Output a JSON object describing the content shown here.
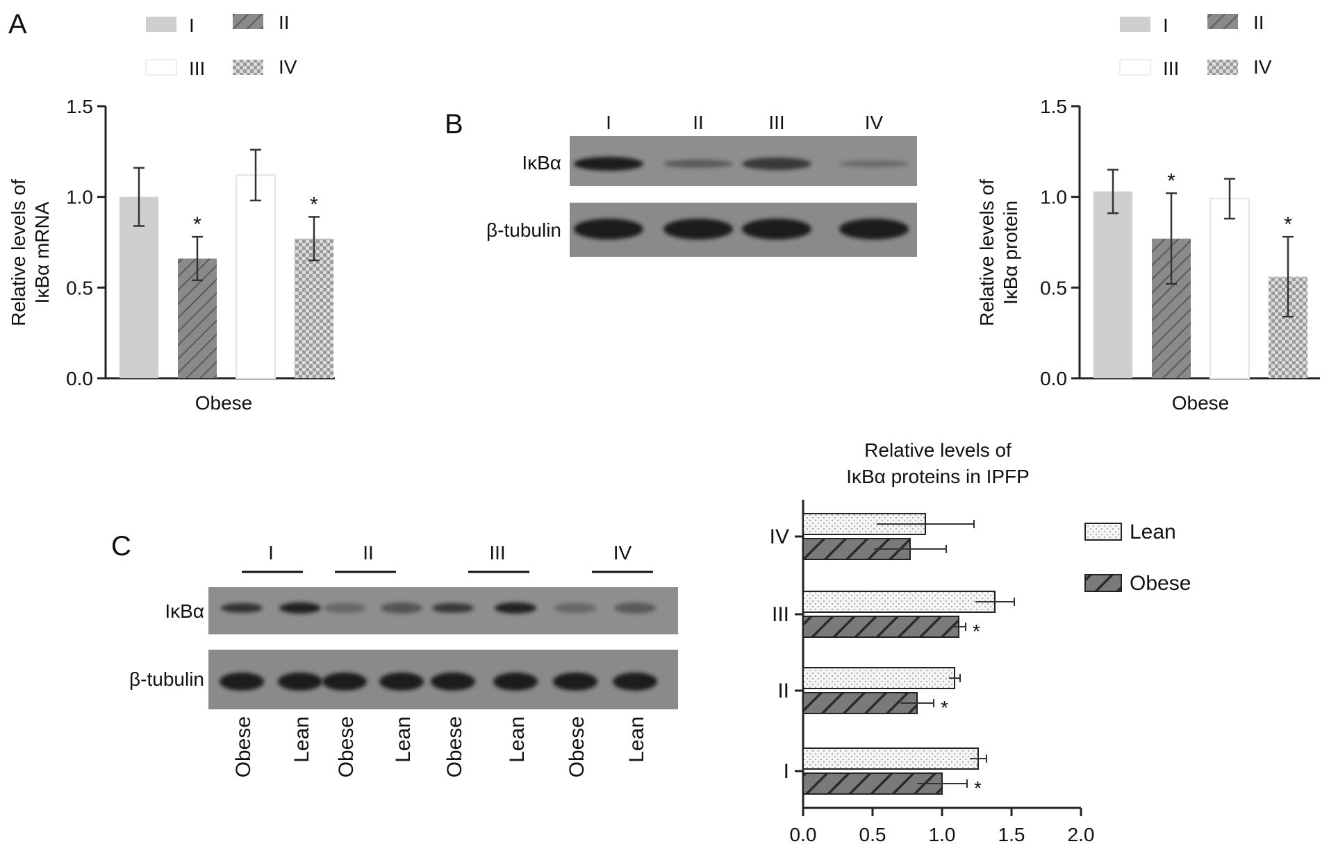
{
  "panels": {
    "a": "A",
    "b": "B",
    "c": "C"
  },
  "legend_groups": [
    "I",
    "II",
    "III",
    "IV"
  ],
  "legend_lean_obese": [
    "Lean",
    "Obese"
  ],
  "blot_b": {
    "lane_labels": [
      "I",
      "II",
      "III",
      "IV"
    ],
    "row_labels": [
      "IκBα",
      "β-tubulin"
    ]
  },
  "blot_c": {
    "group_labels": [
      "I",
      "II",
      "III",
      "IV"
    ],
    "row_labels": [
      "IκBα",
      "β-tubulin"
    ],
    "lane_labels": [
      "Obese",
      "Lean",
      "Obese",
      "Lean",
      "Obese",
      "Lean",
      "Obese",
      "Lean"
    ]
  },
  "colors": {
    "I": "#cfcfcf",
    "II": "#8a8a8a",
    "III": "#ffffff",
    "IV": "#c8c8c8",
    "axis": "#222222",
    "blot_bg": "#8c8c8c",
    "band": "#1e1e1e"
  },
  "chart_data": [
    {
      "type": "bar",
      "categories": [
        "I",
        "II",
        "III",
        "IV"
      ],
      "values": [
        1.0,
        0.66,
        1.12,
        0.77
      ],
      "errors": [
        0.16,
        0.12,
        0.14,
        0.12
      ],
      "significance": [
        "",
        "*",
        "",
        "*"
      ],
      "xlabel": "Obese",
      "ylabel_lines": [
        "Relative levels of",
        "IκBα mRNA"
      ],
      "ylim": [
        0,
        1.5
      ],
      "yticks": [
        "0.0",
        "0.5",
        "1.0",
        "1.5"
      ]
    },
    {
      "type": "bar",
      "categories": [
        "I",
        "II",
        "III",
        "IV"
      ],
      "values": [
        1.03,
        0.77,
        0.99,
        0.56
      ],
      "errors": [
        0.12,
        0.25,
        0.11,
        0.22
      ],
      "significance": [
        "",
        "*",
        "",
        "*"
      ],
      "xlabel": "Obese",
      "ylabel_lines": [
        "Relative levels of",
        "IκBα protein"
      ],
      "ylim": [
        0,
        1.5
      ],
      "yticks": [
        "0.0",
        "0.5",
        "1.0",
        "1.5"
      ]
    },
    {
      "type": "bar",
      "orientation": "horizontal",
      "title_lines": [
        "Relative levels of",
        "IκBα proteins in IPFP"
      ],
      "categories": [
        "IV",
        "III",
        "II",
        "I"
      ],
      "series": [
        {
          "name": "Lean",
          "values": [
            0.88,
            1.38,
            1.09,
            1.26
          ],
          "errors": [
            0.35,
            0.14,
            0.04,
            0.06
          ],
          "significance": [
            "",
            "",
            "",
            ""
          ]
        },
        {
          "name": "Obese",
          "values": [
            0.77,
            1.12,
            0.82,
            1.0
          ],
          "errors": [
            0.26,
            0.05,
            0.12,
            0.18
          ],
          "significance": [
            "",
            "*",
            "*",
            "*"
          ]
        }
      ],
      "xlim": [
        0,
        2.0
      ],
      "xticks": [
        "0.0",
        "0.5",
        "1.0",
        "1.5",
        "2.0"
      ]
    }
  ]
}
